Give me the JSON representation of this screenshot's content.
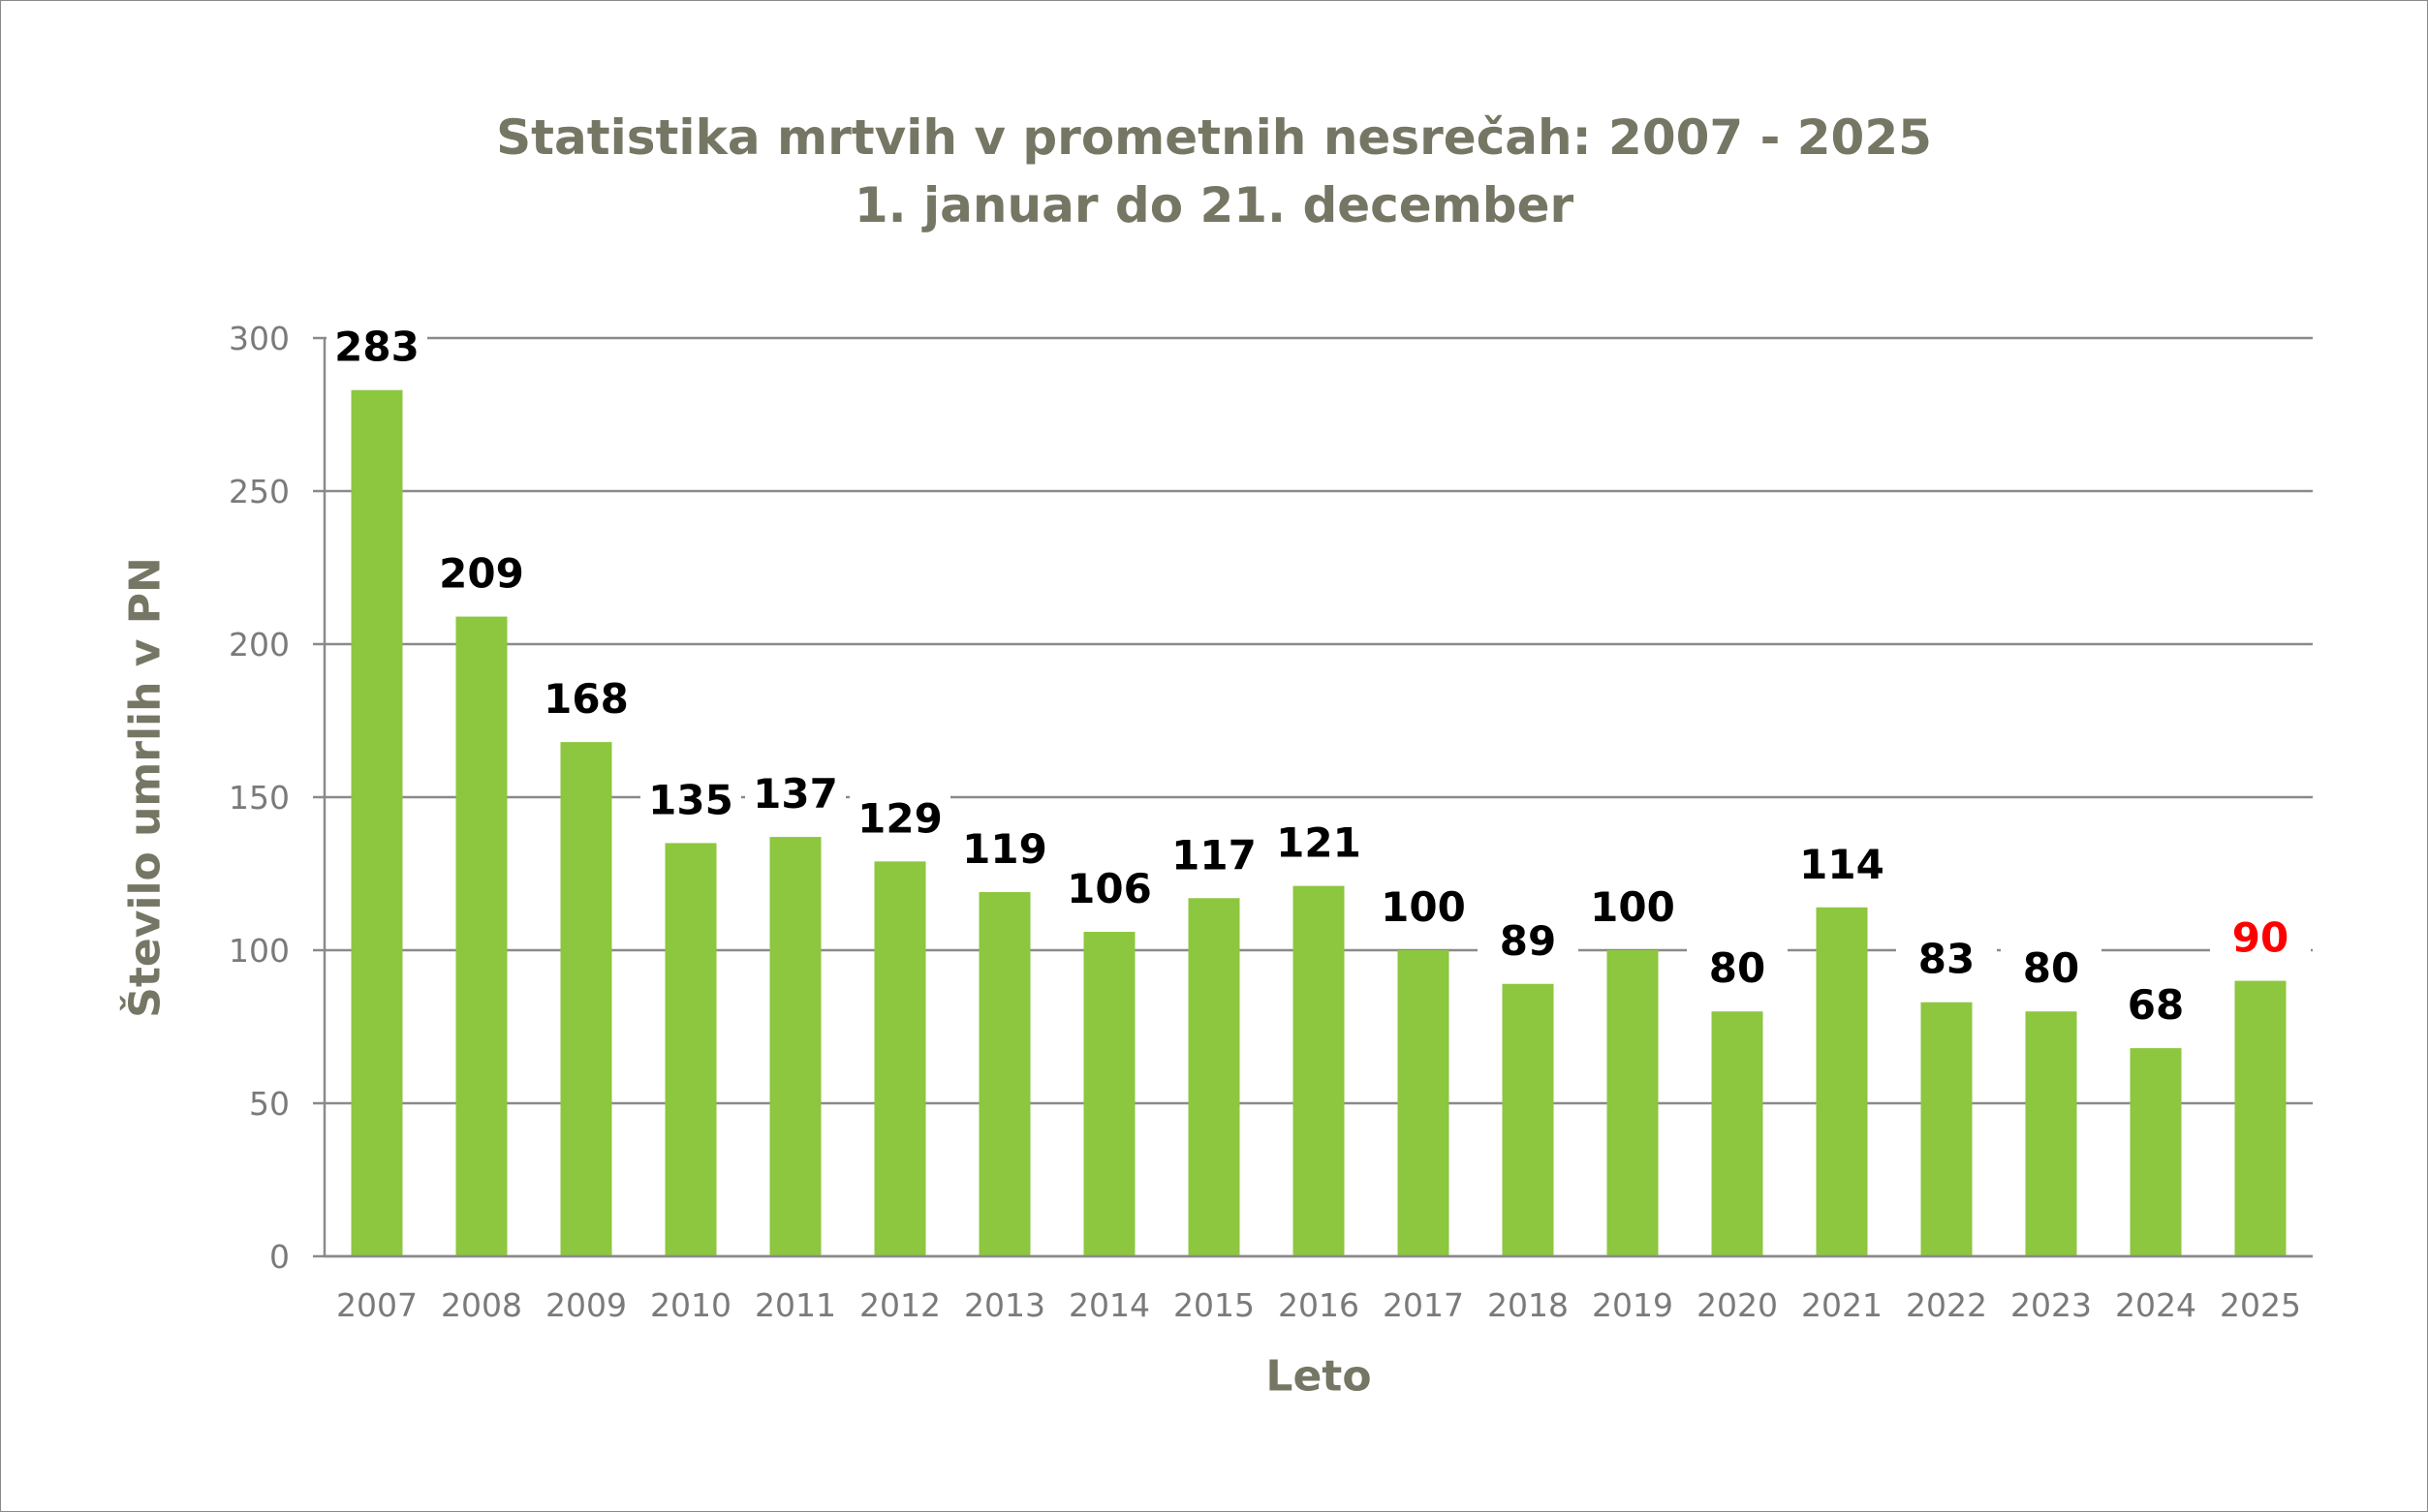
{
  "chart_data": {
    "type": "bar",
    "title": "Statistika mrtvih v prometnih nesrečah: 2007 - 2025",
    "subtitle": "1. januar do 21. december",
    "xlabel": "Leto",
    "ylabel": "Število umrlih v PN",
    "ylim": [
      0,
      300
    ],
    "yticks": [
      0,
      50,
      100,
      150,
      200,
      250,
      300
    ],
    "grid": true,
    "categories": [
      "2007",
      "2008",
      "2009",
      "2010",
      "2011",
      "2012",
      "2013",
      "2014",
      "2015",
      "2016",
      "2017",
      "2018",
      "2019",
      "2020",
      "2021",
      "2022",
      "2023",
      "2024",
      "2025"
    ],
    "values": [
      283,
      209,
      168,
      135,
      137,
      129,
      119,
      106,
      117,
      121,
      100,
      89,
      100,
      80,
      114,
      83,
      80,
      68,
      90
    ],
    "bar_color": "#8dc63f",
    "label_color": "#000000",
    "highlight": {
      "category": "2025",
      "label_color": "#ff0000"
    }
  }
}
